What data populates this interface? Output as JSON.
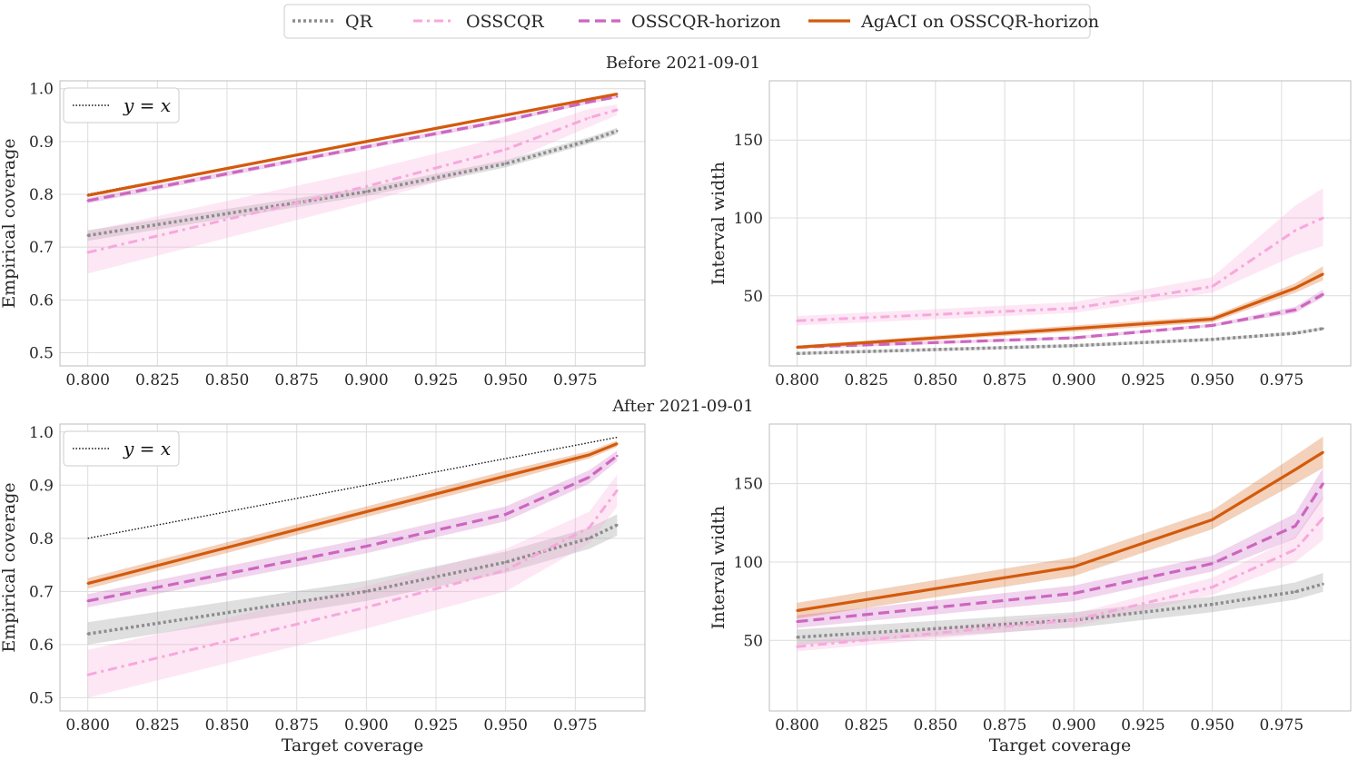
{
  "legend": {
    "items": [
      {
        "label": "QR",
        "color": "#8c8c8c",
        "dash": "dotted"
      },
      {
        "label": "OSSCQR",
        "color": "#f7a8dc",
        "dash": "dashdot"
      },
      {
        "label": "OSSCQR-horizon",
        "color": "#cc66c0",
        "dash": "dashed"
      },
      {
        "label": "AgACI on OSSCQR-horizon",
        "color": "#d35a0c",
        "dash": "solid"
      }
    ]
  },
  "rows": [
    {
      "title": "Before 2021-09-01"
    },
    {
      "title": "After 2021-09-01"
    }
  ],
  "chart_data": [
    {
      "type": "line",
      "panel": "before-coverage",
      "xlabel": "",
      "ylabel": "Empirical coverage",
      "xlim": [
        0.79,
        1.0
      ],
      "ylim": [
        0.475,
        1.015
      ],
      "xticks": [
        "0.800",
        "0.825",
        "0.850",
        "0.875",
        "0.900",
        "0.925",
        "0.950",
        "0.975"
      ],
      "yticks": [
        "0.5",
        "0.6",
        "0.7",
        "0.8",
        "0.9",
        "1.0"
      ],
      "reference_line": {
        "label": "y = x",
        "x": [
          0.8,
          0.99
        ],
        "y": [
          0.8,
          0.99
        ]
      },
      "x": [
        0.8,
        0.9,
        0.95,
        0.98,
        0.99
      ],
      "series": [
        {
          "name": "QR",
          "values": [
            0.722,
            0.805,
            0.858,
            0.902,
            0.92
          ],
          "band_low": [
            0.712,
            0.797,
            0.851,
            0.896,
            0.914
          ],
          "band_high": [
            0.732,
            0.813,
            0.865,
            0.908,
            0.926
          ]
        },
        {
          "name": "OSSCQR",
          "values": [
            0.69,
            0.815,
            0.885,
            0.945,
            0.96
          ],
          "band_low": [
            0.65,
            0.785,
            0.86,
            0.928,
            0.95
          ],
          "band_high": [
            0.73,
            0.845,
            0.91,
            0.962,
            0.97
          ]
        },
        {
          "name": "OSSCQR-horizon",
          "values": [
            0.788,
            0.89,
            0.94,
            0.975,
            0.985
          ],
          "band_low": [
            0.783,
            0.886,
            0.936,
            0.972,
            0.982
          ],
          "band_high": [
            0.793,
            0.894,
            0.944,
            0.978,
            0.988
          ]
        },
        {
          "name": "AgACI on OSSCQR-horizon",
          "values": [
            0.798,
            0.9,
            0.95,
            0.98,
            0.99
          ],
          "band_low": [
            0.795,
            0.897,
            0.947,
            0.977,
            0.988
          ],
          "band_high": [
            0.801,
            0.903,
            0.953,
            0.983,
            0.992
          ]
        }
      ]
    },
    {
      "type": "line",
      "panel": "before-width",
      "xlabel": "",
      "ylabel": "Interval width",
      "xlim": [
        0.79,
        1.0
      ],
      "ylim": [
        5,
        188
      ],
      "xticks": [
        "0.800",
        "0.825",
        "0.850",
        "0.875",
        "0.900",
        "0.925",
        "0.950",
        "0.975"
      ],
      "yticks": [
        "50",
        "100",
        "150"
      ],
      "x": [
        0.8,
        0.9,
        0.95,
        0.98,
        0.99
      ],
      "series": [
        {
          "name": "QR",
          "values": [
            13,
            18,
            22,
            26,
            29
          ],
          "band_low": [
            12,
            17,
            21,
            25,
            28
          ],
          "band_high": [
            14,
            19,
            23,
            27,
            30
          ]
        },
        {
          "name": "OSSCQR",
          "values": [
            34,
            42,
            56,
            92,
            100
          ],
          "band_low": [
            31,
            39,
            52,
            76,
            82
          ],
          "band_high": [
            37,
            46,
            62,
            108,
            119
          ]
        },
        {
          "name": "OSSCQR-horizon",
          "values": [
            17,
            23,
            31,
            41,
            51
          ],
          "band_low": [
            16,
            22,
            30,
            39,
            49
          ],
          "band_high": [
            18,
            24,
            32,
            43,
            54
          ]
        },
        {
          "name": "AgACI on OSSCQR-horizon",
          "values": [
            17,
            29,
            35,
            55,
            64
          ],
          "band_low": [
            16,
            27,
            33,
            52,
            60
          ],
          "band_high": [
            18,
            31,
            37,
            58,
            69
          ]
        }
      ]
    },
    {
      "type": "line",
      "panel": "after-coverage",
      "xlabel": "Target coverage",
      "ylabel": "Empirical coverage",
      "xlim": [
        0.79,
        1.0
      ],
      "ylim": [
        0.475,
        1.015
      ],
      "xticks": [
        "0.800",
        "0.825",
        "0.850",
        "0.875",
        "0.900",
        "0.925",
        "0.950",
        "0.975"
      ],
      "yticks": [
        "0.5",
        "0.6",
        "0.7",
        "0.8",
        "0.9",
        "1.0"
      ],
      "reference_line": {
        "label": "y = x",
        "x": [
          0.8,
          0.99
        ],
        "y": [
          0.8,
          0.99
        ]
      },
      "x": [
        0.8,
        0.9,
        0.95,
        0.98,
        0.99
      ],
      "series": [
        {
          "name": "QR",
          "values": [
            0.62,
            0.7,
            0.755,
            0.8,
            0.825
          ],
          "band_low": [
            0.6,
            0.682,
            0.735,
            0.78,
            0.805
          ],
          "band_high": [
            0.642,
            0.72,
            0.775,
            0.82,
            0.845
          ]
        },
        {
          "name": "OSSCQR",
          "values": [
            0.543,
            0.67,
            0.74,
            0.82,
            0.89
          ],
          "band_low": [
            0.5,
            0.63,
            0.7,
            0.79,
            0.86
          ],
          "band_high": [
            0.59,
            0.71,
            0.78,
            0.85,
            0.92
          ]
        },
        {
          "name": "OSSCQR-horizon",
          "values": [
            0.682,
            0.785,
            0.845,
            0.915,
            0.955
          ],
          "band_low": [
            0.67,
            0.772,
            0.832,
            0.903,
            0.945
          ],
          "band_high": [
            0.695,
            0.8,
            0.86,
            0.928,
            0.965
          ]
        },
        {
          "name": "AgACI on OSSCQR-horizon",
          "values": [
            0.715,
            0.85,
            0.917,
            0.957,
            0.978
          ],
          "band_low": [
            0.705,
            0.84,
            0.907,
            0.95,
            0.972
          ],
          "band_high": [
            0.725,
            0.86,
            0.927,
            0.964,
            0.984
          ]
        }
      ]
    },
    {
      "type": "line",
      "panel": "after-width",
      "xlabel": "Target coverage",
      "ylabel": "Interval width",
      "xlim": [
        0.79,
        1.0
      ],
      "ylim": [
        5,
        188
      ],
      "xticks": [
        "0.800",
        "0.825",
        "0.850",
        "0.875",
        "0.900",
        "0.925",
        "0.950",
        "0.975"
      ],
      "yticks": [
        "50",
        "100",
        "150"
      ],
      "x": [
        0.8,
        0.9,
        0.95,
        0.98,
        0.99
      ],
      "series": [
        {
          "name": "QR",
          "values": [
            52,
            63,
            73,
            81,
            86
          ],
          "band_low": [
            47,
            58,
            68,
            76,
            81
          ],
          "band_high": [
            57,
            68,
            78,
            87,
            93
          ]
        },
        {
          "name": "OSSCQR",
          "values": [
            46,
            63,
            84,
            108,
            128
          ],
          "band_low": [
            43,
            59,
            79,
            100,
            114
          ],
          "band_high": [
            49,
            67,
            90,
            116,
            142
          ]
        },
        {
          "name": "OSSCQR-horizon",
          "values": [
            62,
            80,
            99,
            123,
            150
          ],
          "band_low": [
            58,
            75,
            94,
            115,
            140
          ],
          "band_high": [
            66,
            85,
            104,
            131,
            160
          ]
        },
        {
          "name": "AgACI on OSSCQR-horizon",
          "values": [
            69,
            97,
            127,
            159,
            170
          ],
          "band_low": [
            64,
            91,
            121,
            150,
            160
          ],
          "band_high": [
            74,
            103,
            133,
            168,
            180
          ]
        }
      ]
    }
  ]
}
